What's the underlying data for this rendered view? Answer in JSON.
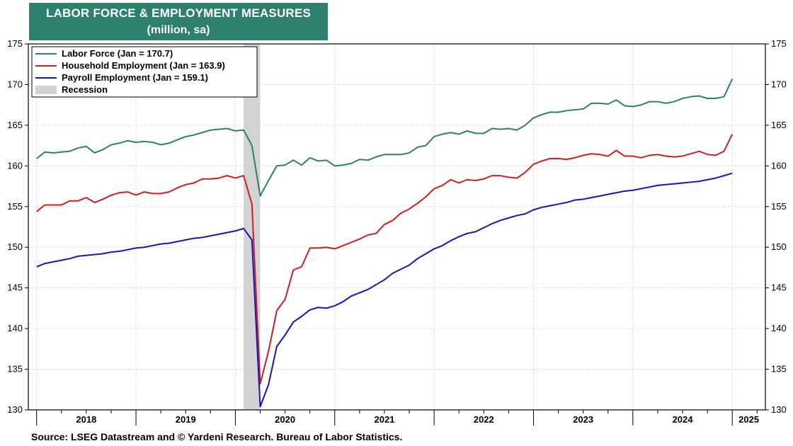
{
  "header": {
    "title": "LABOR FORCE & EMPLOYMENT MEASURES",
    "subtitle": "(million, sa)"
  },
  "source": "Source: LSEG Datastream and © Yardeni Research. Bureau of Labor Statistics.",
  "chart_data": {
    "type": "line",
    "title": "LABOR FORCE & EMPLOYMENT MEASURES",
    "subtitle": "(million, sa)",
    "xlabel": "",
    "ylabel": "",
    "ylim": [
      130,
      175
    ],
    "yticks": [
      130,
      135,
      140,
      145,
      150,
      155,
      160,
      165,
      170,
      175
    ],
    "xlim": [
      "2017-12",
      "2025-05"
    ],
    "year_labels": [
      "2018",
      "2019",
      "2020",
      "2021",
      "2022",
      "2023",
      "2024",
      "2025"
    ],
    "x_start": "2018-01",
    "frequency": "monthly",
    "legend_position": "top-left",
    "grid": true,
    "recession": {
      "label": "Recession",
      "start": "2020-02",
      "end": "2020-04",
      "color": "#d3d3d3"
    },
    "series": [
      {
        "name": "Labor Force (Jan = 170.7)",
        "color": "#2e7f6e",
        "values": [
          160.9,
          161.7,
          161.6,
          161.7,
          161.8,
          162.2,
          162.4,
          161.6,
          162.0,
          162.6,
          162.8,
          163.1,
          162.9,
          163.0,
          162.9,
          162.6,
          162.8,
          163.2,
          163.6,
          163.8,
          164.1,
          164.4,
          164.5,
          164.6,
          164.3,
          164.4,
          162.5,
          156.3,
          158.2,
          160.0,
          160.1,
          160.7,
          160.1,
          161.0,
          160.6,
          160.7,
          160.0,
          160.1,
          160.3,
          160.8,
          160.7,
          161.1,
          161.4,
          161.4,
          161.4,
          161.6,
          162.3,
          162.5,
          163.6,
          163.9,
          164.1,
          163.9,
          164.3,
          164.0,
          164.0,
          164.6,
          164.5,
          164.6,
          164.4,
          165.0,
          165.9,
          166.3,
          166.6,
          166.6,
          166.8,
          166.9,
          167.0,
          167.7,
          167.7,
          167.6,
          168.1,
          167.4,
          167.3,
          167.5,
          167.9,
          167.9,
          167.7,
          167.9,
          168.3,
          168.5,
          168.6,
          168.3,
          168.3,
          168.5,
          170.7
        ]
      },
      {
        "name": "Household Employment (Jan = 163.9)",
        "color": "#cc1f1f",
        "values": [
          154.4,
          155.2,
          155.2,
          155.2,
          155.7,
          155.7,
          156.1,
          155.5,
          155.9,
          156.4,
          156.7,
          156.8,
          156.4,
          156.8,
          156.6,
          156.6,
          156.8,
          157.3,
          157.7,
          157.9,
          158.4,
          158.4,
          158.5,
          158.8,
          158.5,
          158.8,
          155.3,
          133.2,
          137.2,
          142.2,
          143.6,
          147.2,
          147.6,
          149.9,
          149.9,
          150.0,
          149.8,
          150.2,
          150.6,
          151.0,
          151.5,
          151.7,
          152.8,
          153.3,
          154.2,
          154.7,
          155.4,
          156.2,
          157.2,
          157.6,
          158.3,
          157.9,
          158.3,
          158.2,
          158.4,
          158.8,
          158.8,
          158.6,
          158.5,
          159.2,
          160.2,
          160.6,
          160.9,
          160.9,
          160.8,
          161.0,
          161.3,
          161.5,
          161.4,
          161.2,
          161.9,
          161.2,
          161.2,
          161.0,
          161.3,
          161.4,
          161.2,
          161.1,
          161.2,
          161.5,
          161.8,
          161.4,
          161.3,
          161.8,
          163.9
        ]
      },
      {
        "name": "Payroll Employment (Jan = 159.1)",
        "color": "#1515b8",
        "values": [
          147.6,
          148.0,
          148.2,
          148.4,
          148.6,
          148.9,
          149.0,
          149.1,
          149.2,
          149.4,
          149.5,
          149.7,
          149.9,
          150.0,
          150.2,
          150.4,
          150.5,
          150.7,
          150.9,
          151.1,
          151.2,
          151.4,
          151.6,
          151.8,
          152.0,
          152.3,
          150.9,
          130.4,
          133.1,
          137.8,
          139.2,
          140.8,
          141.5,
          142.3,
          142.6,
          142.5,
          142.8,
          143.3,
          144.0,
          144.4,
          144.8,
          145.4,
          146.0,
          146.8,
          147.3,
          147.8,
          148.6,
          149.2,
          149.8,
          150.2,
          150.8,
          151.3,
          151.7,
          151.9,
          152.4,
          152.9,
          153.3,
          153.6,
          153.9,
          154.1,
          154.6,
          154.9,
          155.1,
          155.3,
          155.5,
          155.8,
          155.9,
          156.1,
          156.3,
          156.5,
          156.7,
          156.9,
          157.0,
          157.2,
          157.4,
          157.6,
          157.7,
          157.8,
          157.9,
          158.0,
          158.1,
          158.3,
          158.5,
          158.8,
          159.1
        ]
      }
    ]
  }
}
